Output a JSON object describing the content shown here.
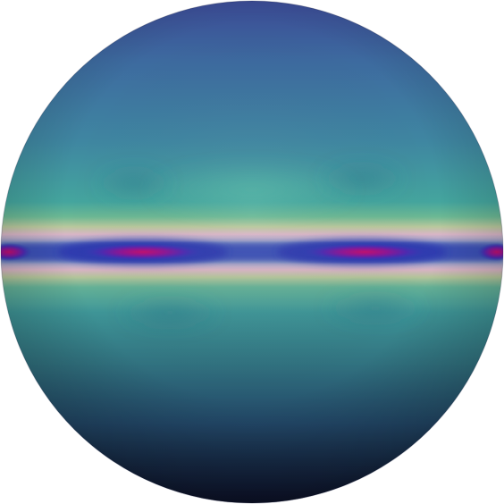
{
  "scene": {
    "subject": "sphere",
    "background_color": "#ffffff",
    "colors": {
      "top_pole": "#3b4d95",
      "upper_mid": "#3f83a0",
      "band_teal": "#44a89c",
      "band_green": "#89c08a",
      "band_pink": "#d7a9c2",
      "core_blue": "#2d3fb7",
      "core_purple": "#6d1ba4",
      "core_magenta": "#b8127a",
      "lower_mid": "#2f6b8d",
      "bottom_pole": "#141a3f"
    },
    "icons": [
      "sphere-icon",
      "equatorial-band-icon",
      "hotspot-icon"
    ]
  }
}
